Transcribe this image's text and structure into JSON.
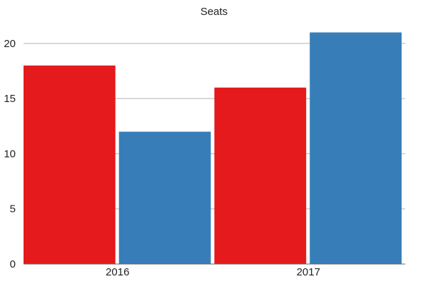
{
  "chart_data": {
    "type": "bar",
    "title": "Seats",
    "categories": [
      "2016",
      "2017"
    ],
    "series": [
      {
        "values": [
          18,
          16
        ],
        "color": "#e41a1c"
      },
      {
        "values": [
          12,
          21
        ],
        "color": "#377eb8"
      }
    ],
    "ylim": [
      0,
      22
    ],
    "yticks": [
      0,
      5,
      10,
      15,
      20
    ],
    "grid": true,
    "legend": "none",
    "xlabel": "",
    "ylabel": ""
  }
}
